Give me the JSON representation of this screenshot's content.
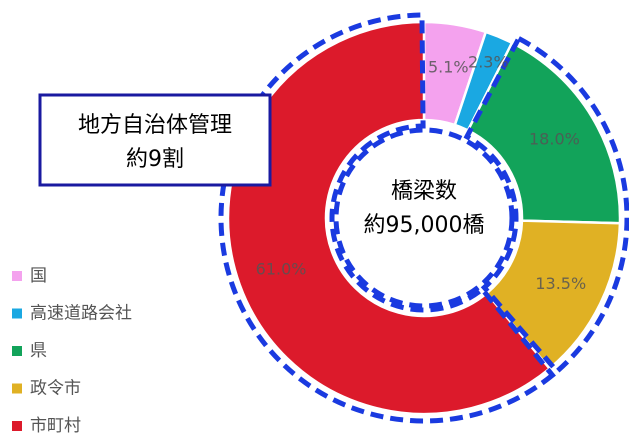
{
  "chart_data": {
    "type": "donut",
    "categories": [
      "国",
      "高速道路会社",
      "県",
      "政令市",
      "市町村"
    ],
    "values": [
      5.1,
      2.3,
      18.0,
      13.5,
      61.0
    ],
    "value_labels": [
      "5.1%",
      "2.3%",
      "18.0%",
      "13.5%",
      "61.0%"
    ],
    "colors": [
      "#f4a2ee",
      "#1aa8e2",
      "#12a35a",
      "#e0b124",
      "#dc1a2b"
    ],
    "legend": "left",
    "center_label": [
      "橋梁数",
      "約95,000橋"
    ],
    "annotation": [
      "地方自治体管理",
      "約9割"
    ]
  }
}
